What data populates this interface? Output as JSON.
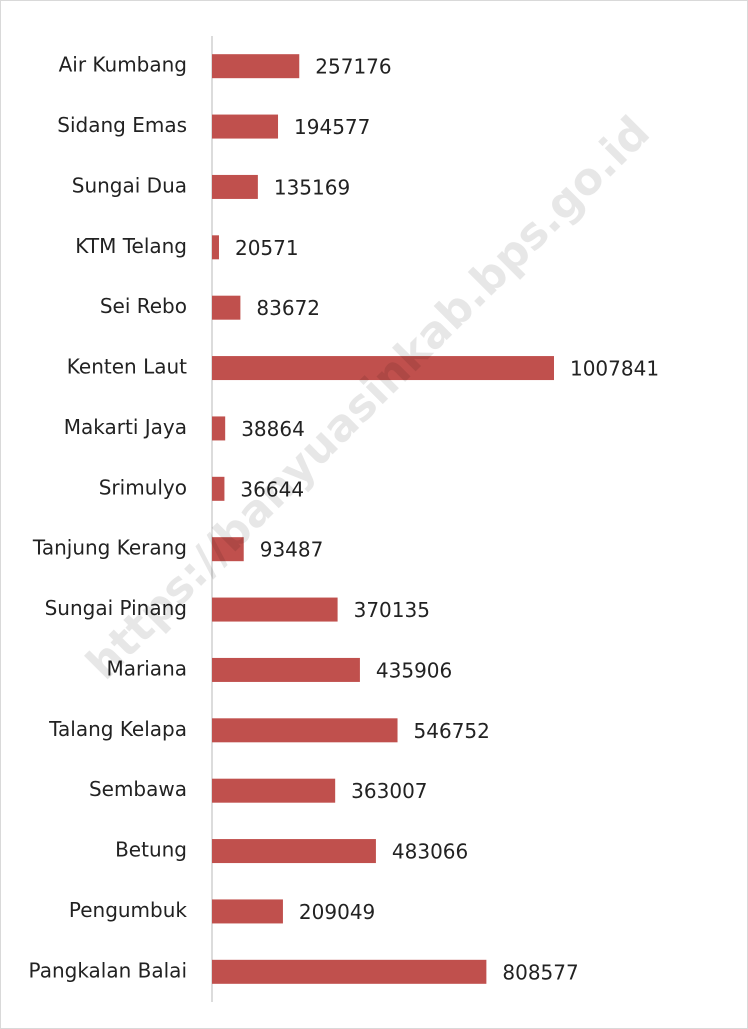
{
  "chart_data": {
    "type": "barh",
    "categories": [
      "Air Kumbang",
      "Sidang Emas",
      "Sungai Dua",
      "KTM Telang",
      "Sei Rebo",
      "Kenten Laut",
      "Makarti Jaya",
      "Srimulyo",
      "Tanjung Kerang",
      "Sungai Pinang",
      "Mariana",
      "Talang Kelapa",
      "Sembawa",
      "Betung",
      "Pengumbuk",
      "Pangkalan Balai"
    ],
    "values": [
      257176,
      194577,
      135169,
      20571,
      83672,
      1007841,
      38864,
      36644,
      93487,
      370135,
      435906,
      546752,
      363007,
      483066,
      209049,
      808577
    ],
    "color": "#c0504d",
    "xlim": [
      0,
      1500000
    ],
    "watermark": "https://banyuasinkab.bps.go.id"
  }
}
